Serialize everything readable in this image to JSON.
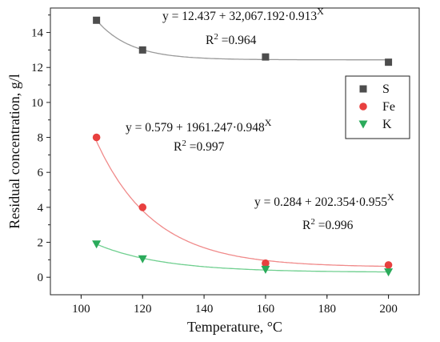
{
  "chart_data": {
    "type": "scatter",
    "title": "",
    "xlabel": "Temperature, °C",
    "ylabel": "Residual concentration, g/l",
    "xlim": [
      90,
      210
    ],
    "ylim": [
      -1,
      15.4
    ],
    "xticks": [
      100,
      120,
      140,
      160,
      180,
      200
    ],
    "yticks": [
      0,
      2,
      4,
      6,
      8,
      10,
      12,
      14
    ],
    "grid": false,
    "legend_position": "right",
    "series": [
      {
        "name": "S",
        "marker": "square",
        "color": "#4d4d4d",
        "curve_color": "#9a9a9a",
        "x": [
          105,
          120,
          160,
          200
        ],
        "y": [
          14.7,
          13.0,
          12.6,
          12.3
        ],
        "fit": {
          "a": 12.437,
          "b": 32067.192,
          "c": 0.913
        },
        "equation": "y = 12.437 + 32,067.192·0.913",
        "equation_exponent": "X",
        "r2_label": "R",
        "r2_exponent": "2",
        "r2_value": " =0.964"
      },
      {
        "name": "Fe",
        "marker": "circle",
        "color": "#e8403f",
        "curve_color": "#f08a8a",
        "x": [
          105,
          120,
          160,
          200
        ],
        "y": [
          8.0,
          4.0,
          0.8,
          0.7
        ],
        "fit": {
          "a": 0.579,
          "b": 1961.247,
          "c": 0.948
        },
        "equation": "y = 0.579 + 1961.247·0.948",
        "equation_exponent": "X",
        "r2_label": "R",
        "r2_exponent": "2",
        "r2_value": " =0.997"
      },
      {
        "name": "K",
        "marker": "triangle-down",
        "color": "#2aaa5a",
        "curve_color": "#6fcf8f",
        "x": [
          105,
          120,
          160,
          200
        ],
        "y": [
          1.9,
          1.05,
          0.45,
          0.3
        ],
        "fit": {
          "a": 0.284,
          "b": 202.354,
          "c": 0.955
        },
        "equation": "y = 0.284 + 202.354·0.955",
        "equation_exponent": "X",
        "r2_label": "R",
        "r2_exponent": "2",
        "r2_value": " =0.996"
      }
    ]
  }
}
